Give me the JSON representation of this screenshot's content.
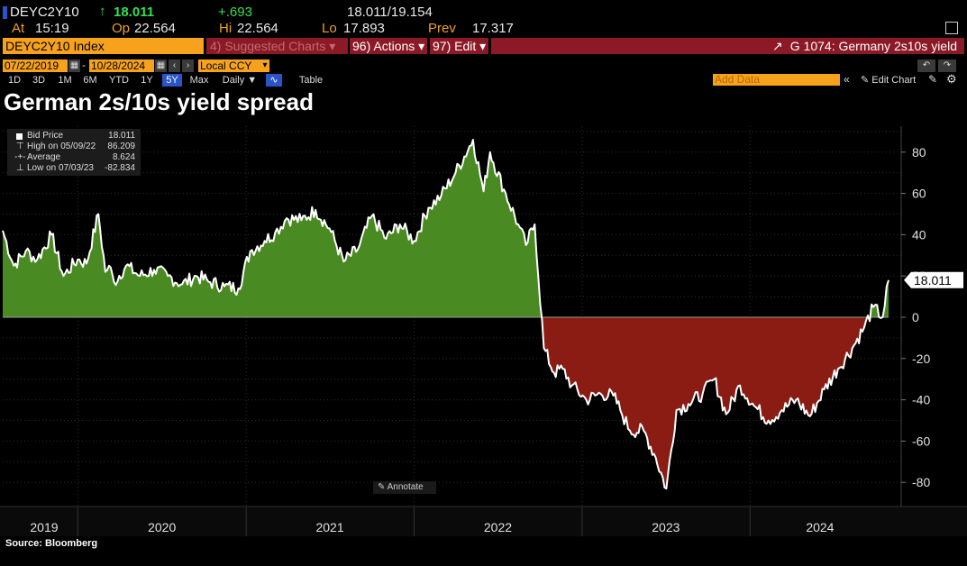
{
  "ticker": {
    "security": "DEYC2Y10",
    "last": "18.011",
    "change": "+.693",
    "range": "18.011/19.154",
    "at_label": "At",
    "at_time": "15:19",
    "op_label": "Op",
    "op": "22.564",
    "hi_label": "Hi",
    "hi": "22.564",
    "lo_label": "Lo",
    "lo": "17.893",
    "prev_label": "Prev",
    "prev": "17.317"
  },
  "function_bar": {
    "index_label": "DEYC2Y10 Index",
    "suggested": "4) Suggested Charts",
    "actions": "96) Actions",
    "edit": "97) Edit",
    "title": "G 1074: Germany 2s10s yield"
  },
  "dates": {
    "start": "07/22/2019",
    "end": "10/28/2024",
    "currency": "Local CCY"
  },
  "periods": [
    "1D",
    "3D",
    "1M",
    "6M",
    "YTD",
    "1Y",
    "5Y",
    "Max"
  ],
  "selected_period": "5Y",
  "frequency": "Daily",
  "table_label": "Table",
  "add_data_placeholder": "Add Data",
  "edit_chart_label": "Edit Chart",
  "chart_title": "German 2s/10s yield spread",
  "legend": {
    "bid_label": "Bid Price",
    "bid_value": "18.011",
    "high_label": "High on 05/09/22",
    "high_value": "86.209",
    "avg_label": "Average",
    "avg_value": "8.624",
    "low_label": "Low on 07/03/23",
    "low_value": "-82.834"
  },
  "last_value_tag": "18.011",
  "annotate_label": "Annotate",
  "source": "Source: Bloomberg",
  "colors": {
    "positive_fill": "#4a8a22",
    "negative_fill": "#8a1c14",
    "line": "#ffffff",
    "accent": "#f6a21d"
  },
  "chart_data": {
    "type": "area",
    "title": "German 2s/10s yield spread",
    "ylim": [
      -90,
      95
    ],
    "y_ticks": [
      80,
      60,
      40,
      20,
      0,
      -20,
      -40,
      -60,
      -80
    ],
    "x_tick_labels": [
      "2019",
      "2020",
      "2021",
      "2022",
      "2023",
      "2024"
    ],
    "x_range": [
      "2019-07-22",
      "2024-10-28"
    ],
    "grid": true,
    "series": [
      {
        "name": "Bid Price",
        "x": [
          "2019-07-22",
          "2019-08-15",
          "2019-09-10",
          "2019-10-05",
          "2019-11-05",
          "2019-12-01",
          "2020-01-01",
          "2020-01-20",
          "2020-02-15",
          "2020-03-01",
          "2020-03-09",
          "2020-03-20",
          "2020-04-15",
          "2020-05-15",
          "2020-06-15",
          "2020-07-15",
          "2020-08-15",
          "2020-09-15",
          "2020-10-15",
          "2020-11-15",
          "2020-12-15",
          "2021-01-10",
          "2021-02-10",
          "2021-03-05",
          "2021-03-30",
          "2021-05-01",
          "2021-06-01",
          "2021-07-01",
          "2021-08-01",
          "2021-09-01",
          "2021-10-01",
          "2021-11-01",
          "2021-12-01",
          "2022-01-01",
          "2022-02-01",
          "2022-03-01",
          "2022-04-01",
          "2022-05-09",
          "2022-06-01",
          "2022-06-15",
          "2022-07-15",
          "2022-08-15",
          "2022-09-01",
          "2022-09-20",
          "2022-10-10",
          "2022-11-01",
          "2022-11-20",
          "2022-12-10",
          "2023-01-10",
          "2023-02-10",
          "2023-03-10",
          "2023-03-25",
          "2023-04-15",
          "2023-05-15",
          "2023-06-10",
          "2023-07-03",
          "2023-07-25",
          "2023-08-20",
          "2023-09-20",
          "2023-10-15",
          "2023-11-10",
          "2023-12-10",
          "2024-01-10",
          "2024-02-10",
          "2024-03-10",
          "2024-04-10",
          "2024-05-10",
          "2024-06-10",
          "2024-07-10",
          "2024-08-10",
          "2024-09-05",
          "2024-09-25",
          "2024-10-15",
          "2024-10-28"
        ],
        "values": [
          42,
          25,
          32,
          28,
          40,
          20,
          28,
          26,
          50,
          22,
          25,
          17,
          25,
          20,
          23,
          20,
          16,
          20,
          17,
          15,
          14,
          32,
          37,
          41,
          48,
          47,
          52,
          43,
          27,
          33,
          49,
          38,
          45,
          37,
          53,
          59,
          70,
          86,
          61,
          80,
          62,
          45,
          35,
          45,
          -15,
          -27,
          -25,
          -33,
          -40,
          -37,
          -38,
          -45,
          -55,
          -55,
          -68,
          -83,
          -45,
          -42,
          -37,
          -30,
          -47,
          -33,
          -43,
          -50,
          -45,
          -40,
          -48,
          -35,
          -25,
          -15,
          -5,
          5,
          0,
          18
        ]
      }
    ]
  }
}
